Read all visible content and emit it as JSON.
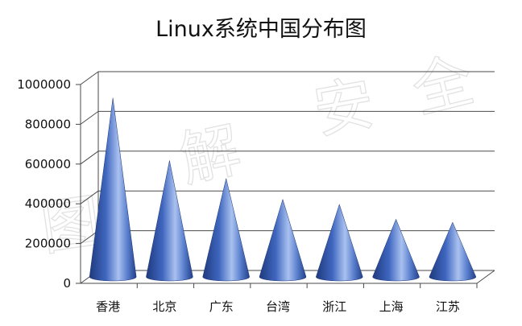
{
  "chart_data": {
    "type": "bar",
    "shape": "cone",
    "title": "Linux系统中国分布图",
    "xlabel": "",
    "ylabel": "",
    "categories": [
      "香港",
      "北京",
      "广东",
      "台湾",
      "浙江",
      "上海",
      "江苏"
    ],
    "values": [
      900000,
      585000,
      495000,
      390000,
      365000,
      290000,
      275000
    ],
    "ylim": [
      0,
      1000000
    ],
    "yticks": [
      "0",
      "200000",
      "400000",
      "600000",
      "800000",
      "1000000"
    ],
    "grid": true,
    "legend": "none",
    "colors": {
      "cone_dark": "#24418a",
      "cone_mid": "#4f76cc",
      "cone_light": "#a9c1f0",
      "grid": "#4a4a4a"
    }
  },
  "watermark": "图解安全"
}
